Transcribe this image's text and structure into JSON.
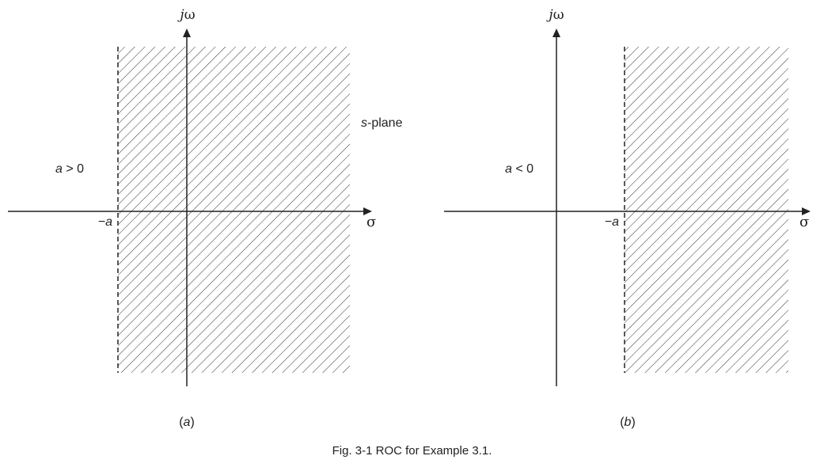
{
  "panel_a": {
    "axis_vertical": {
      "j": "j",
      "omega": "ω"
    },
    "axis_horizontal": "σ",
    "boundary_label": "−a",
    "condition": {
      "var": "a",
      "op": " > 0"
    },
    "plane_label": {
      "var": "s",
      "rest": "-plane"
    },
    "sublabel": {
      "open": "(",
      "letter": "a",
      "close": ")"
    }
  },
  "panel_b": {
    "axis_vertical": {
      "j": "j",
      "omega": "ω"
    },
    "axis_horizontal": "σ",
    "boundary_label": "−a",
    "condition": {
      "var": "a",
      "op": " < 0"
    },
    "sublabel": {
      "open": "(",
      "letter": "b",
      "close": ")"
    }
  },
  "caption": "Fig. 3-1  ROC for Example 3.1.",
  "colors": {
    "ink": "#222222",
    "hatch": "#333333"
  }
}
